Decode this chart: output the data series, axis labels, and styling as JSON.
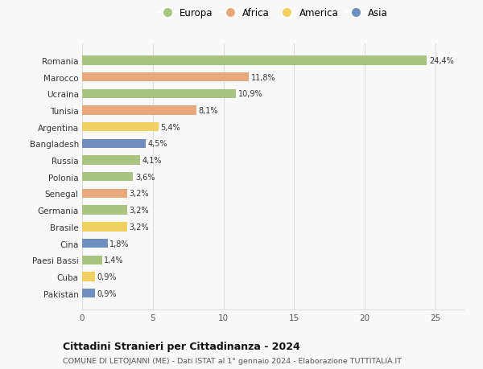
{
  "categories": [
    "Romania",
    "Marocco",
    "Ucraina",
    "Tunisia",
    "Argentina",
    "Bangladesh",
    "Russia",
    "Polonia",
    "Senegal",
    "Germania",
    "Brasile",
    "Cina",
    "Paesi Bassi",
    "Cuba",
    "Pakistan"
  ],
  "values": [
    24.4,
    11.8,
    10.9,
    8.1,
    5.4,
    4.5,
    4.1,
    3.6,
    3.2,
    3.2,
    3.2,
    1.8,
    1.4,
    0.9,
    0.9
  ],
  "labels": [
    "24,4%",
    "11,8%",
    "10,9%",
    "8,1%",
    "5,4%",
    "4,5%",
    "4,1%",
    "3,6%",
    "3,2%",
    "3,2%",
    "3,2%",
    "1,8%",
    "1,4%",
    "0,9%",
    "0,9%"
  ],
  "continents": [
    "Europa",
    "Africa",
    "Europa",
    "Africa",
    "America",
    "Asia",
    "Europa",
    "Europa",
    "Africa",
    "Europa",
    "America",
    "Asia",
    "Europa",
    "America",
    "Asia"
  ],
  "colors": {
    "Europa": "#a8c47f",
    "Africa": "#e8a87c",
    "America": "#f0d060",
    "Asia": "#6e8fbf"
  },
  "xlim": [
    0,
    27
  ],
  "xticks": [
    0,
    5,
    10,
    15,
    20,
    25
  ],
  "title": "Cittadini Stranieri per Cittadinanza - 2024",
  "subtitle": "COMUNE DI LETOJANNI (ME) - Dati ISTAT al 1° gennaio 2024 - Elaborazione TUTTITALIA.IT",
  "background_color": "#f9f9f9",
  "grid_color": "#dddddd"
}
